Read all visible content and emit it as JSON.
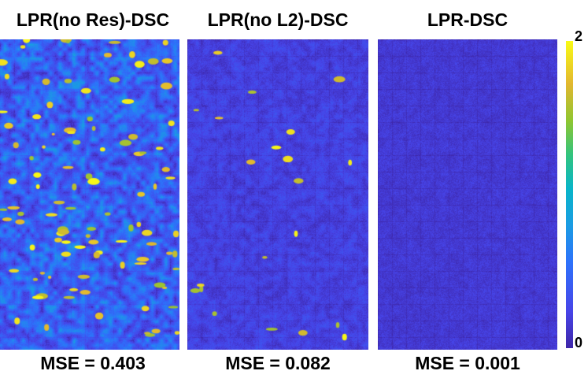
{
  "panels": [
    {
      "title": "LPR(no Res)-DSC",
      "mse": "MSE = 0.403",
      "intensity": 0.403
    },
    {
      "title": "LPR(no L2)-DSC",
      "mse": "MSE = 0.082",
      "intensity": 0.082
    },
    {
      "title": "LPR-DSC",
      "mse": "MSE = 0.001",
      "intensity": 0.001
    }
  ],
  "colorbar": {
    "max_label": "2",
    "min_label": "0",
    "colormap": "parula"
  }
}
